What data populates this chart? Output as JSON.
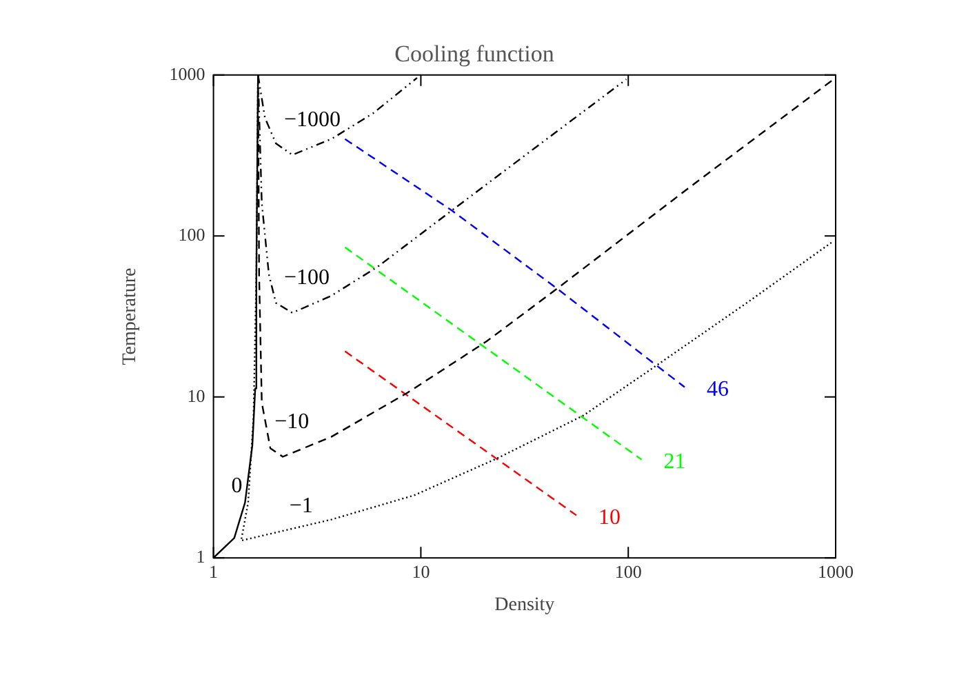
{
  "chart_data": {
    "type": "line",
    "title": "Cooling function",
    "xlabel": "Density",
    "ylabel": "Temperature",
    "log": "xy",
    "grid": false,
    "legend": false,
    "xlim": [
      1,
      1000
    ],
    "xticks": [
      1,
      10,
      100,
      1000
    ],
    "ylim": [
      1,
      1000
    ],
    "yticks": [
      1,
      10,
      100,
      1000
    ],
    "series": [
      {
        "name": "0",
        "color": "#000000",
        "line_style": "solid",
        "x": [
          1,
          1.26,
          1.42,
          1.54,
          1.59,
          1.61,
          1.64
        ],
        "values": [
          1,
          1.33,
          2.21,
          5.0,
          11.3,
          57.6,
          1000
        ]
      },
      {
        "name": "−1",
        "color": "#000000",
        "line_style": "dotted",
        "x": [
          1.64,
          1.61,
          1.56,
          1.47,
          1.36,
          3.7,
          9.3,
          23.4,
          60.8,
          137,
          373,
          968
        ],
        "values": [
          1000,
          57.7,
          7.52,
          2.21,
          1.28,
          1.73,
          2.45,
          4.16,
          7.67,
          15.7,
          38.4,
          92.2
        ]
      },
      {
        "name": "−10",
        "color": "#000000",
        "line_style": "dashed",
        "x": [
          1.64,
          1.66,
          1.71,
          1.88,
          2.16,
          3.7,
          8.61,
          20.7,
          45.4,
          202,
          998
        ],
        "values": [
          1000,
          57.7,
          9.22,
          4.8,
          4.25,
          5.65,
          10.6,
          22.1,
          47.1,
          205,
          960
        ]
      },
      {
        "name": "−100",
        "color": "#000000",
        "line_style": "dashdot",
        "x": [
          1.64,
          1.71,
          1.85,
          2.0,
          2.4,
          3.7,
          6.14,
          14.1,
          37.1,
          97.9
        ],
        "values": [
          1000,
          160,
          57.7,
          38.4,
          33.3,
          42.5,
          63.9,
          144,
          368,
          940
        ]
      },
      {
        "name": "−1000",
        "color": "#000000",
        "line_style": "dashdot",
        "x": [
          1.64,
          1.77,
          2.0,
          2.4,
          3.7,
          5.87,
          9.59
        ],
        "values": [
          1000,
          543,
          376,
          319,
          400,
          577,
          960
        ]
      },
      {
        "name": "46",
        "color": "#0000ff",
        "line_style": "dashed",
        "x": [
          4.31,
          14.1,
          45.4,
          187
        ],
        "values": [
          400,
          144,
          47.1,
          11.5
        ]
      },
      {
        "name": "21",
        "color": "#00ff00",
        "line_style": "dashed",
        "x": [
          4.31,
          116
        ],
        "values": [
          85,
          4.08
        ]
      },
      {
        "name": "10",
        "color": "#ff0000",
        "line_style": "dashed",
        "x": [
          4.31,
          56.2
        ],
        "values": [
          19.2,
          1.84
        ]
      }
    ]
  }
}
